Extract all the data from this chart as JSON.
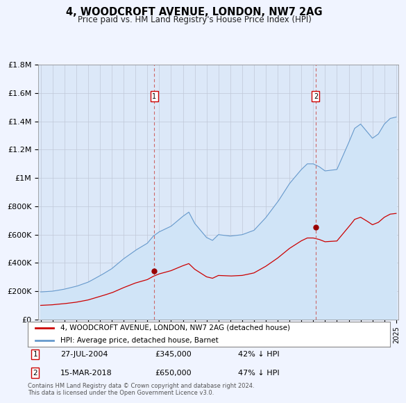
{
  "title": "4, WOODCROFT AVENUE, LONDON, NW7 2AG",
  "subtitle": "Price paid vs. HM Land Registry's House Price Index (HPI)",
  "background_color": "#f0f4ff",
  "plot_bg_color": "#dce8f8",
  "legend_line1": "4, WOODCROFT AVENUE, LONDON, NW7 2AG (detached house)",
  "legend_line2": "HPI: Average price, detached house, Barnet",
  "annotation1": {
    "label": "1",
    "date": "27-JUL-2004",
    "price": "£345,000",
    "pct": "42% ↓ HPI",
    "x_year": 2004.57
  },
  "annotation2": {
    "label": "2",
    "date": "15-MAR-2018",
    "price": "£650,000",
    "pct": "47% ↓ HPI",
    "x_year": 2018.21
  },
  "footer": "Contains HM Land Registry data © Crown copyright and database right 2024.\nThis data is licensed under the Open Government Licence v3.0.",
  "red_color": "#cc0000",
  "blue_color": "#6699cc",
  "blue_fill": "#d0e4f7",
  "ann1_red_val": 345000,
  "ann2_red_val": 650000,
  "ylim": [
    0,
    1800000
  ],
  "yticks": [
    0,
    200000,
    400000,
    600000,
    800000,
    1000000,
    1200000,
    1400000,
    1600000,
    1800000
  ],
  "ytick_labels": [
    "£0",
    "£200K",
    "£400K",
    "£600K",
    "£800K",
    "£1M",
    "£1.2M",
    "£1.4M",
    "£1.6M",
    "£1.8M"
  ],
  "xlim_start": 1994.8,
  "xlim_end": 2025.2
}
